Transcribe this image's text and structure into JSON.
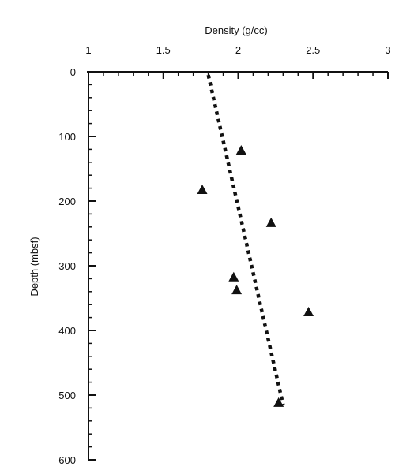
{
  "chart_data": {
    "type": "scatter",
    "title": "",
    "xlabel": "Density (g/cc)",
    "ylabel": "Depth (mbsf)",
    "x_axis_position": "top",
    "y_axis_inverted": true,
    "xlim": [
      1,
      3
    ],
    "ylim": [
      0,
      600
    ],
    "x_major_ticks": [
      1,
      1.5,
      2,
      2.5,
      3
    ],
    "x_minor_ticks": [
      1.1,
      1.2,
      1.3,
      1.4,
      1.6,
      1.7,
      1.8,
      1.9,
      2.1,
      2.2,
      2.3,
      2.4,
      2.6,
      2.7,
      2.8,
      2.9
    ],
    "y_major_ticks": [
      0,
      100,
      200,
      300,
      400,
      500,
      600
    ],
    "y_minor_ticks": [
      20,
      40,
      60,
      80,
      120,
      140,
      160,
      180,
      220,
      240,
      260,
      280,
      320,
      340,
      360,
      380,
      420,
      440,
      460,
      480,
      520,
      540,
      560,
      580
    ],
    "grid": false,
    "series": [
      {
        "marker": "triangle",
        "color": "#111111",
        "points": [
          {
            "x": 2.02,
            "y": 122
          },
          {
            "x": 1.76,
            "y": 183
          },
          {
            "x": 2.22,
            "y": 234
          },
          {
            "x": 1.97,
            "y": 318
          },
          {
            "x": 1.99,
            "y": 338
          },
          {
            "x": 2.47,
            "y": 372
          },
          {
            "x": 2.27,
            "y": 512
          }
        ]
      },
      {
        "line": "dotted",
        "color": "#111111",
        "points": [
          {
            "x": 1.8,
            "y": 5
          },
          {
            "x": 2.3,
            "y": 515
          }
        ]
      }
    ]
  }
}
